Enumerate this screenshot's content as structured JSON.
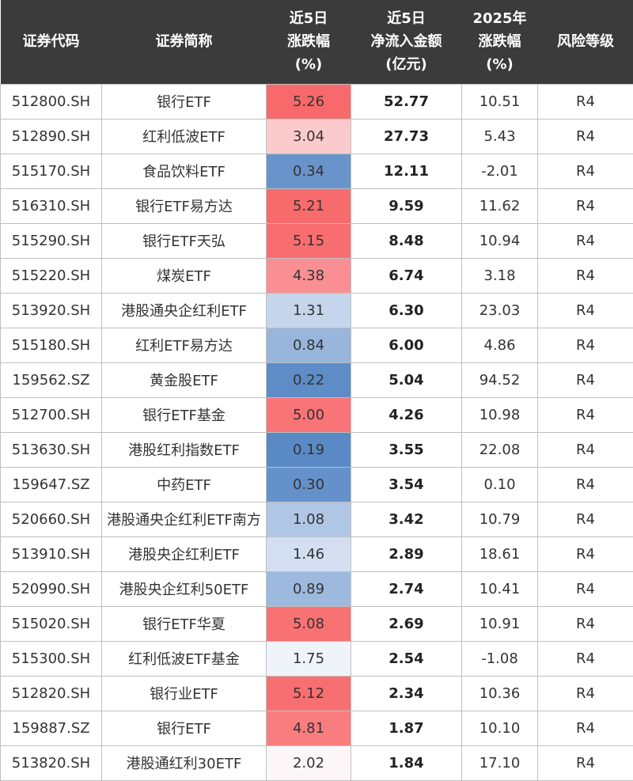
{
  "headers": [
    [
      "证券代码"
    ],
    [
      "证券简称"
    ],
    [
      "近5日",
      "涨跌幅",
      "(%)"
    ],
    [
      "近5日",
      "净流入金额",
      "(亿元)"
    ],
    [
      "2025年",
      "涨跌幅",
      "(%)"
    ],
    [
      "风险等级"
    ]
  ],
  "colors": {
    "header_bg": "#3b3b3b",
    "heat_high": "#f8696b",
    "heat_mid": "#fcfcff",
    "heat_low": "#5a8ac6"
  },
  "rows": [
    {
      "code": "512800.SH",
      "name": "银行ETF",
      "chg5d": "5.26",
      "flow5d": "52.77",
      "chg2025": "10.51",
      "risk": "R4"
    },
    {
      "code": "512890.SH",
      "name": "红利低波ETF",
      "chg5d": "3.04",
      "flow5d": "27.73",
      "chg2025": "5.43",
      "risk": "R4"
    },
    {
      "code": "515170.SH",
      "name": "食品饮料ETF",
      "chg5d": "0.34",
      "flow5d": "12.11",
      "chg2025": "-2.01",
      "risk": "R4"
    },
    {
      "code": "516310.SH",
      "name": "银行ETF易方达",
      "chg5d": "5.21",
      "flow5d": "9.59",
      "chg2025": "11.62",
      "risk": "R4"
    },
    {
      "code": "515290.SH",
      "name": "银行ETF天弘",
      "chg5d": "5.15",
      "flow5d": "8.48",
      "chg2025": "10.94",
      "risk": "R4"
    },
    {
      "code": "515220.SH",
      "name": "煤炭ETF",
      "chg5d": "4.38",
      "flow5d": "6.74",
      "chg2025": "3.18",
      "risk": "R4"
    },
    {
      "code": "513920.SH",
      "name": "港股通央企红利ETF",
      "chg5d": "1.31",
      "flow5d": "6.30",
      "chg2025": "23.03",
      "risk": "R4"
    },
    {
      "code": "515180.SH",
      "name": "红利ETF易方达",
      "chg5d": "0.84",
      "flow5d": "6.00",
      "chg2025": "4.86",
      "risk": "R4"
    },
    {
      "code": "159562.SZ",
      "name": "黄金股ETF",
      "chg5d": "0.22",
      "flow5d": "5.04",
      "chg2025": "94.52",
      "risk": "R4"
    },
    {
      "code": "512700.SH",
      "name": "银行ETF基金",
      "chg5d": "5.00",
      "flow5d": "4.26",
      "chg2025": "10.98",
      "risk": "R4"
    },
    {
      "code": "513630.SH",
      "name": "港股红利指数ETF",
      "chg5d": "0.19",
      "flow5d": "3.55",
      "chg2025": "22.08",
      "risk": "R4"
    },
    {
      "code": "159647.SZ",
      "name": "中药ETF",
      "chg5d": "0.30",
      "flow5d": "3.54",
      "chg2025": "0.10",
      "risk": "R4"
    },
    {
      "code": "520660.SH",
      "name": "港股通央企红利ETF南方",
      "chg5d": "1.08",
      "flow5d": "3.42",
      "chg2025": "10.79",
      "risk": "R4"
    },
    {
      "code": "513910.SH",
      "name": "港股央企红利ETF",
      "chg5d": "1.46",
      "flow5d": "2.89",
      "chg2025": "18.61",
      "risk": "R4"
    },
    {
      "code": "520990.SH",
      "name": "港股央企红利50ETF",
      "chg5d": "0.89",
      "flow5d": "2.74",
      "chg2025": "10.41",
      "risk": "R4"
    },
    {
      "code": "515020.SH",
      "name": "银行ETF华夏",
      "chg5d": "5.08",
      "flow5d": "2.69",
      "chg2025": "10.91",
      "risk": "R4"
    },
    {
      "code": "515300.SH",
      "name": "红利低波ETF基金",
      "chg5d": "1.75",
      "flow5d": "2.54",
      "chg2025": "-1.08",
      "risk": "R4"
    },
    {
      "code": "512820.SH",
      "name": "银行业ETF",
      "chg5d": "5.12",
      "flow5d": "2.34",
      "chg2025": "10.36",
      "risk": "R4"
    },
    {
      "code": "159887.SZ",
      "name": "银行ETF",
      "chg5d": "4.81",
      "flow5d": "1.87",
      "chg2025": "10.10",
      "risk": "R4"
    },
    {
      "code": "513820.SH",
      "name": "港股通红利30ETF",
      "chg5d": "2.02",
      "flow5d": "1.84",
      "chg2025": "17.10",
      "risk": "R4"
    }
  ]
}
